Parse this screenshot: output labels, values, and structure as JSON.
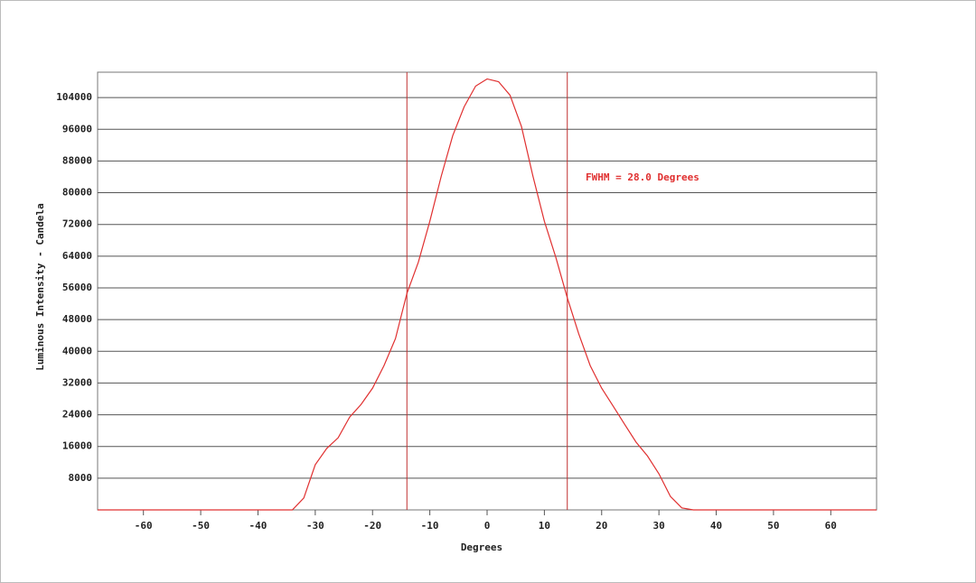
{
  "chart_data": {
    "type": "line",
    "xlabel": "Degrees",
    "ylabel": "Luminous Intensity - Candela",
    "annotation": "FWHM = 28.0 Degrees",
    "x": [
      -68,
      -40,
      -34,
      -32,
      -30,
      -28,
      -26,
      -24,
      -22,
      -20,
      -18,
      -16,
      -14,
      -12,
      -10,
      -8,
      -6,
      -4,
      -2,
      0,
      2,
      4,
      6,
      8,
      10,
      12,
      14,
      16,
      18,
      20,
      22,
      24,
      26,
      28,
      30,
      32,
      34,
      36,
      68
    ],
    "series": [
      {
        "color": "#e03030",
        "values": [
          0,
          0,
          0,
          3000,
          11400,
          15500,
          18200,
          23400,
          26600,
          30700,
          36400,
          43200,
          54600,
          62500,
          72800,
          84200,
          94400,
          101700,
          106900,
          108700,
          108000,
          104600,
          96700,
          84200,
          72800,
          63700,
          53500,
          44400,
          36400,
          30700,
          26200,
          21600,
          17100,
          13600,
          9100,
          3400,
          500,
          0,
          0
        ]
      }
    ],
    "vlines": [
      -14,
      14
    ],
    "vline_color": "#c03030",
    "xlim": [
      -68,
      68
    ],
    "ylim": [
      0,
      110400
    ],
    "xticks": [
      -60,
      -50,
      -40,
      -30,
      -20,
      -10,
      0,
      10,
      20,
      30,
      40,
      50,
      60
    ],
    "yticks": [
      8000,
      16000,
      24000,
      32000,
      40000,
      48000,
      56000,
      64000,
      72000,
      80000,
      88000,
      96000,
      104000
    ],
    "grid": true
  }
}
